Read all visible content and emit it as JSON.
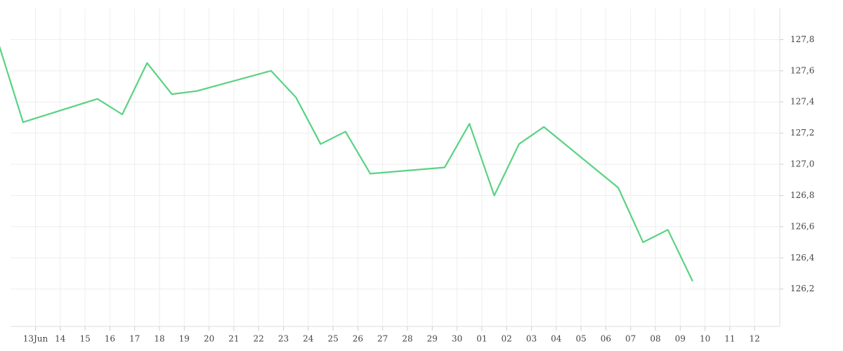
{
  "chart_data": {
    "type": "line",
    "categories": [
      "13Jun",
      "14",
      "15",
      "16",
      "17",
      "18",
      "19",
      "20",
      "21",
      "22",
      "23",
      "24",
      "25",
      "26",
      "27",
      "28",
      "29",
      "30",
      "01",
      "02",
      "03",
      "04",
      "05",
      "06",
      "07",
      "08",
      "09",
      "10",
      "11",
      "12"
    ],
    "series": [
      {
        "color": "#5ad282",
        "x": [
          null,
          "13Jun",
          "16",
          "17",
          "18",
          "19",
          "20",
          "23",
          "24",
          "25",
          "26",
          "27",
          "30",
          "01",
          "02",
          "03",
          "04",
          "07",
          "08",
          "09",
          "10"
        ],
        "values": [
          127.78,
          127.27,
          127.42,
          127.32,
          127.65,
          127.45,
          127.47,
          127.6,
          127.43,
          127.13,
          127.21,
          126.94,
          126.98,
          127.26,
          126.8,
          127.13,
          127.24,
          126.85,
          126.5,
          126.58,
          126.25
        ]
      }
    ],
    "ylim": [
      125.96,
      128.0
    ],
    "yticks": [
      {
        "value": 126.2,
        "label": "126,2"
      },
      {
        "value": 126.4,
        "label": "126,4"
      },
      {
        "value": 126.6,
        "label": "126,6"
      },
      {
        "value": 126.8,
        "label": "126,8"
      },
      {
        "value": 127.0,
        "label": "127,0"
      },
      {
        "value": 127.2,
        "label": "127,2"
      },
      {
        "value": 127.4,
        "label": "127,4"
      },
      {
        "value": 127.6,
        "label": "127,6"
      },
      {
        "value": 127.8,
        "label": "127,8"
      }
    ],
    "grid": true
  }
}
